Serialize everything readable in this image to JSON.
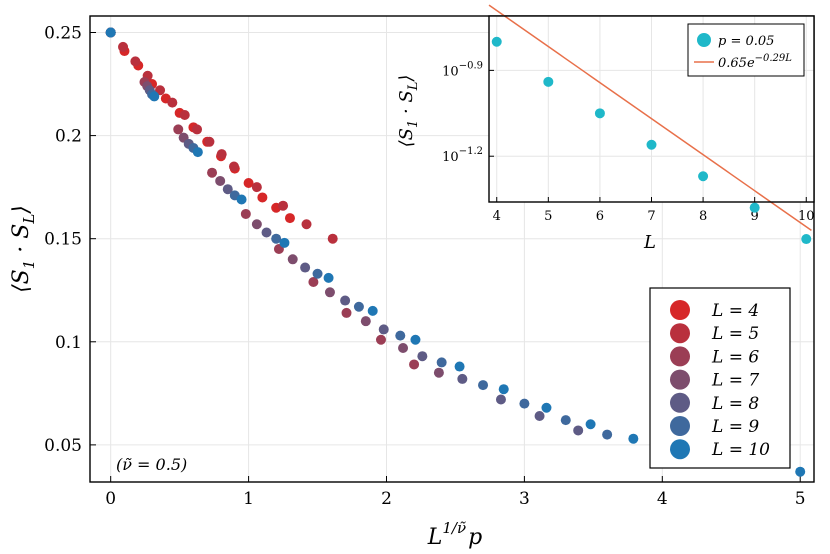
{
  "chart_data": [
    {
      "type": "scatter",
      "id": "main",
      "xlabel": "L^{1/ν̃} p",
      "xlabel_parts": {
        "base": "L",
        "exp": "1/ν̃",
        "tail": "p"
      },
      "ylabel": "⟨S_1 · S_L⟩",
      "ylabel_parts": {
        "open": "⟨S",
        "sub1": "1",
        "dot": " · S",
        "sub2": "L",
        "close": "⟩"
      },
      "xlim": [
        -0.15,
        5.1
      ],
      "ylim": [
        0.032,
        0.258
      ],
      "xticks": [
        0,
        1,
        2,
        3,
        4,
        5
      ],
      "xtick_labels": [
        "0",
        "1",
        "2",
        "3",
        "4",
        "5"
      ],
      "yticks": [
        0.05,
        0.1,
        0.15,
        0.2,
        0.25
      ],
      "ytick_labels": [
        "0.05",
        "0.1",
        "0.15",
        "0.2",
        "0.25"
      ],
      "grid": true,
      "annotation": "(ν̃ = 0.5)",
      "legend_position": "bottom-right",
      "series": [
        {
          "name": "L = 4",
          "color": "#d62728",
          "x": [
            0,
            0.1,
            0.2,
            0.3,
            0.4,
            0.5,
            0.6,
            0.7,
            0.8,
            0.9,
            1.0,
            1.1,
            1.2,
            1.3
          ],
          "y": [
            0.25,
            0.241,
            0.234,
            0.225,
            0.218,
            0.211,
            0.204,
            0.197,
            0.19,
            0.184,
            0.177,
            0.17,
            0.165,
            0.16
          ]
        },
        {
          "name": "L = 5",
          "color": "#b9303d",
          "x": [
            0,
            0.0894,
            0.179,
            0.268,
            0.358,
            0.447,
            0.537,
            0.626,
            0.716,
            0.805,
            0.894,
            1.06,
            1.25,
            1.42,
            1.61
          ],
          "y": [
            0.25,
            0.243,
            0.236,
            0.229,
            0.222,
            0.216,
            0.21,
            0.203,
            0.197,
            0.191,
            0.185,
            0.175,
            0.166,
            0.157,
            0.15
          ]
        },
        {
          "name": "L = 6",
          "color": "#9b3e55",
          "x": [
            0,
            0.245,
            0.49,
            0.735,
            0.98,
            1.22,
            1.47,
            1.71,
            1.96,
            2.2
          ],
          "y": [
            0.25,
            0.226,
            0.203,
            0.182,
            0.162,
            0.145,
            0.129,
            0.114,
            0.101,
            0.089
          ]
        },
        {
          "name": "L = 7",
          "color": "#7d4d6d",
          "x": [
            0,
            0.265,
            0.529,
            0.794,
            1.06,
            1.32,
            1.59,
            1.85,
            2.12,
            2.38
          ],
          "y": [
            0.25,
            0.224,
            0.199,
            0.178,
            0.157,
            0.14,
            0.124,
            0.11,
            0.097,
            0.085
          ]
        },
        {
          "name": "L = 8",
          "color": "#5e5b85",
          "x": [
            0,
            0.283,
            0.566,
            0.849,
            1.13,
            1.41,
            1.7,
            1.98,
            2.26,
            2.55,
            2.83,
            3.11,
            3.39
          ],
          "y": [
            0.25,
            0.222,
            0.196,
            0.174,
            0.153,
            0.136,
            0.12,
            0.106,
            0.093,
            0.082,
            0.072,
            0.064,
            0.057
          ]
        },
        {
          "name": "L = 9",
          "color": "#3f699d",
          "x": [
            0,
            0.3,
            0.6,
            0.9,
            1.2,
            1.5,
            1.8,
            2.1,
            2.4,
            2.7,
            3.0,
            3.3,
            3.6
          ],
          "y": [
            0.25,
            0.22,
            0.194,
            0.171,
            0.15,
            0.133,
            0.117,
            0.103,
            0.09,
            0.079,
            0.07,
            0.062,
            0.055
          ]
        },
        {
          "name": "L = 10",
          "color": "#1f77b4",
          "x": [
            0,
            0.316,
            0.632,
            0.949,
            1.26,
            1.58,
            1.9,
            2.21,
            2.53,
            2.85,
            3.16,
            3.48,
            3.79,
            5.0
          ],
          "y": [
            0.25,
            0.219,
            0.192,
            0.169,
            0.148,
            0.131,
            0.115,
            0.101,
            0.088,
            0.077,
            0.068,
            0.06,
            0.053,
            0.037
          ]
        }
      ]
    },
    {
      "type": "scatter",
      "id": "inset",
      "xlabel": "L",
      "ylabel": "⟨S_1 · S_L⟩",
      "ylabel_parts": {
        "open": "⟨S",
        "sub1": "1",
        "dot": " · S",
        "sub2": "L",
        "close": "⟩"
      },
      "xlim": [
        3.85,
        10.15
      ],
      "ylim_log10": [
        -1.36,
        -0.71
      ],
      "yscale": "log",
      "xticks": [
        4,
        5,
        6,
        7,
        8,
        9,
        10
      ],
      "xtick_labels": [
        "4",
        "5",
        "6",
        "7",
        "8",
        "9",
        "10"
      ],
      "yticks_log10": [
        -0.9,
        -1.2
      ],
      "ytick_labels": [
        {
          "base": "10",
          "exp": "−0.9"
        },
        {
          "base": "10",
          "exp": "−1.2"
        }
      ],
      "grid": true,
      "legend_position": "top-right",
      "series": [
        {
          "name": "p = 0.05",
          "color": "#1fb8c9",
          "x": [
            4,
            5,
            6,
            7,
            8,
            9,
            10
          ],
          "y": [
            0.1585,
            0.1148,
            0.0891,
            0.0692,
            0.0537,
            0.0417,
            0.0324
          ]
        }
      ],
      "fit": {
        "name": "0.65e^{−0.29L}",
        "name_parts": {
          "coef": "0.65e",
          "exp": "−0.29L"
        },
        "color": "#e8704a",
        "a": 0.65,
        "b": -0.29,
        "x_range": [
          3.85,
          10.1
        ]
      }
    }
  ]
}
